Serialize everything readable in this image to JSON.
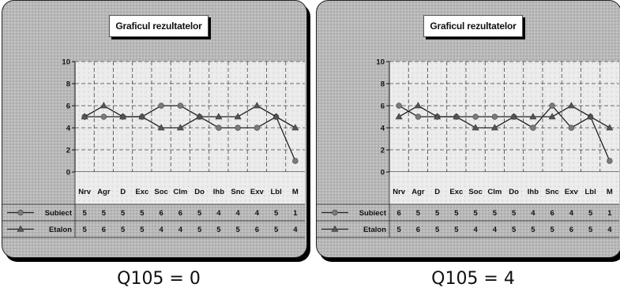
{
  "chart_data": [
    {
      "type": "line",
      "title": "Graficul rezultatelor",
      "categories": [
        "Nrv",
        "Agr",
        "D",
        "Exc",
        "Soc",
        "Clm",
        "Do",
        "Ihb",
        "Snc",
        "Exv",
        "Lbl",
        "M"
      ],
      "series": [
        {
          "name": "Subiect",
          "values": [
            5,
            5,
            5,
            5,
            6,
            6,
            5,
            4,
            4,
            4,
            5,
            1
          ],
          "marker": "circle"
        },
        {
          "name": "Etalon",
          "values": [
            5,
            6,
            5,
            5,
            4,
            4,
            5,
            5,
            5,
            6,
            5,
            4
          ],
          "marker": "triangle"
        }
      ],
      "ylim": [
        0,
        10
      ],
      "yticks": [
        0,
        2,
        4,
        6,
        8,
        10
      ],
      "grid": true,
      "data_table": true,
      "caption": "Q105 = 0"
    },
    {
      "type": "line",
      "title": "Graficul rezultatelor",
      "categories": [
        "Nrv",
        "Agr",
        "D",
        "Exc",
        "Soc",
        "Clm",
        "Do",
        "Ihb",
        "Snc",
        "Exv",
        "Lbl",
        "M"
      ],
      "series": [
        {
          "name": "Subiect",
          "values": [
            6,
            5,
            5,
            5,
            5,
            5,
            5,
            4,
            6,
            4,
            5,
            1
          ],
          "marker": "circle"
        },
        {
          "name": "Etalon",
          "values": [
            5,
            6,
            5,
            5,
            4,
            4,
            5,
            5,
            5,
            6,
            5,
            4
          ],
          "marker": "triangle"
        }
      ],
      "ylim": [
        0,
        10
      ],
      "yticks": [
        0,
        2,
        4,
        6,
        8,
        10
      ],
      "grid": true,
      "data_table": true,
      "caption": "Q105 = 4"
    }
  ],
  "colors": {
    "line": "#222222",
    "subiect_marker": "#7a7a7a",
    "etalon_marker": "#555555"
  }
}
